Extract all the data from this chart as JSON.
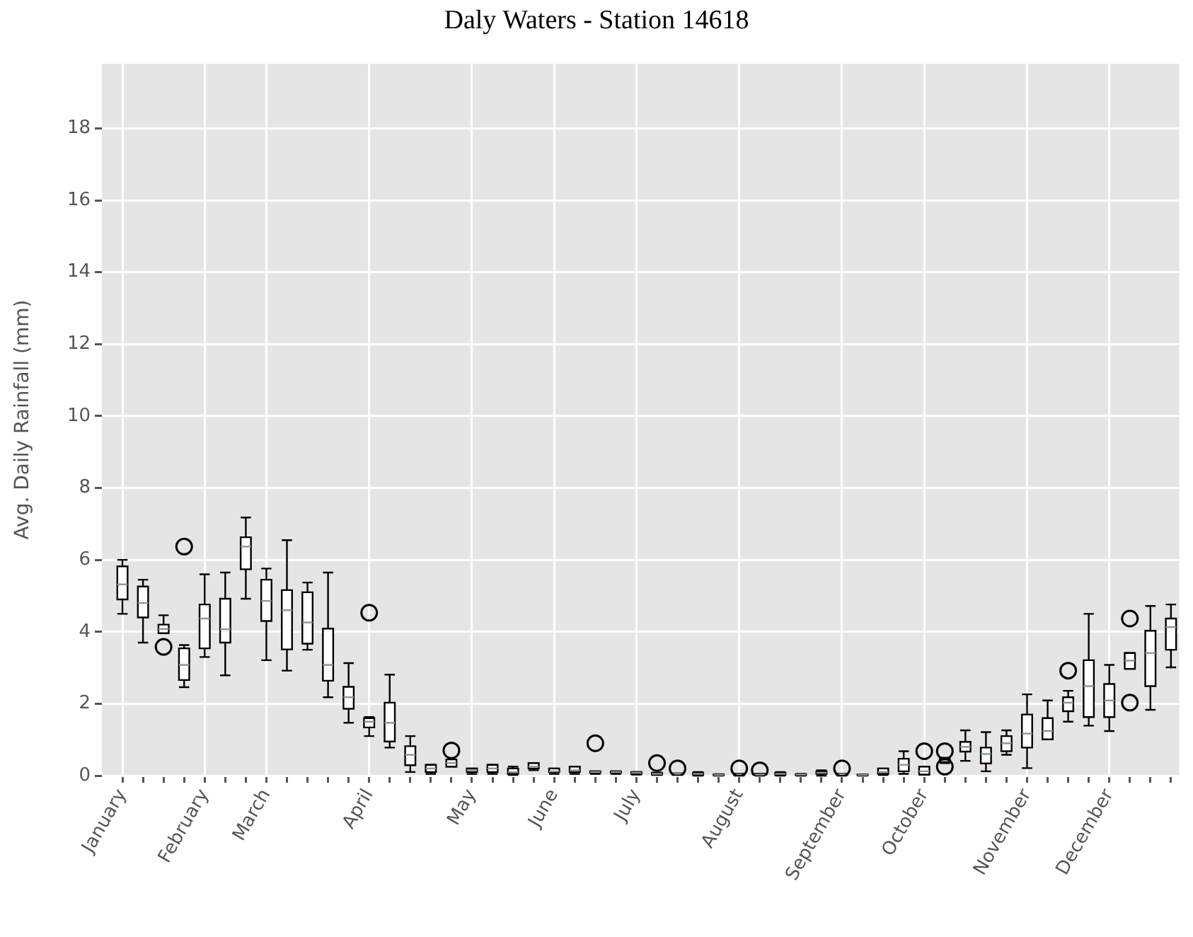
{
  "chart_data": {
    "type": "box",
    "title": "Daly Waters - Station 14618",
    "ylabel": "Avg. Daily Rainfall (mm)",
    "color": "#ffffff",
    "categories": [
      "January",
      null,
      null,
      null,
      "February",
      null,
      null,
      "March",
      null,
      null,
      null,
      null,
      "April",
      null,
      null,
      null,
      null,
      "May",
      null,
      null,
      null,
      "June",
      null,
      null,
      null,
      "July",
      null,
      null,
      null,
      null,
      "August",
      null,
      null,
      null,
      null,
      "September",
      null,
      null,
      null,
      "October",
      null,
      null,
      null,
      null,
      "November",
      null,
      null,
      null,
      "December",
      null,
      null,
      null
    ],
    "boxes": [
      {
        "low": 4.5,
        "q1": 4.9,
        "median": 5.32,
        "q3": 5.82,
        "high": 6.0
      },
      {
        "low": 3.7,
        "q1": 4.4,
        "median": 4.8,
        "q3": 5.26,
        "high": 5.45
      },
      {
        "low": 3.96,
        "q1": 3.96,
        "median": 4.08,
        "q3": 4.2,
        "high": 4.46,
        "outliers": [
          3.58
        ]
      },
      {
        "low": 2.46,
        "q1": 2.66,
        "median": 3.08,
        "q3": 3.54,
        "high": 3.63,
        "outliers": [
          6.37
        ]
      },
      {
        "low": 3.3,
        "q1": 3.54,
        "median": 4.37,
        "q3": 4.76,
        "high": 5.6
      },
      {
        "low": 2.79,
        "q1": 3.7,
        "median": 4.07,
        "q3": 4.92,
        "high": 5.65
      },
      {
        "low": 4.92,
        "q1": 5.74,
        "median": 6.37,
        "q3": 6.63,
        "high": 7.18
      },
      {
        "low": 3.21,
        "q1": 4.3,
        "median": 4.86,
        "q3": 5.45,
        "high": 5.76
      },
      {
        "low": 2.92,
        "q1": 3.51,
        "median": 4.6,
        "q3": 5.16,
        "high": 6.55
      },
      {
        "low": 3.5,
        "q1": 3.67,
        "median": 4.26,
        "q3": 5.1,
        "high": 5.37
      },
      {
        "low": 2.18,
        "q1": 2.64,
        "median": 3.08,
        "q3": 4.09,
        "high": 5.65
      },
      {
        "low": 1.47,
        "q1": 1.86,
        "median": 2.18,
        "q3": 2.47,
        "high": 3.13
      },
      {
        "low": 1.1,
        "q1": 1.34,
        "median": 1.5,
        "q3": 1.6,
        "high": 1.63,
        "outliers": [
          4.53
        ]
      },
      {
        "low": 0.78,
        "q1": 0.95,
        "median": 1.47,
        "q3": 2.03,
        "high": 2.81
      },
      {
        "low": 0.1,
        "q1": 0.29,
        "median": 0.58,
        "q3": 0.82,
        "high": 1.1
      },
      {
        "low": 0.05,
        "q1": 0.1,
        "median": 0.2,
        "q3": 0.3,
        "high": 0.3
      },
      {
        "low": 0.25,
        "q1": 0.25,
        "median": 0.35,
        "q3": 0.45,
        "high": 0.45,
        "outliers": [
          0.7
        ]
      },
      {
        "low": 0.05,
        "q1": 0.1,
        "median": 0.15,
        "q3": 0.2,
        "high": 0.2
      },
      {
        "low": 0.05,
        "q1": 0.1,
        "median": 0.2,
        "q3": 0.3,
        "high": 0.3
      },
      {
        "low": 0.02,
        "q1": 0.05,
        "median": 0.1,
        "q3": 0.2,
        "high": 0.25
      },
      {
        "low": 0.15,
        "q1": 0.2,
        "median": 0.25,
        "q3": 0.35,
        "high": 0.35
      },
      {
        "low": 0.05,
        "q1": 0.1,
        "median": 0.12,
        "q3": 0.2,
        "high": 0.2
      },
      {
        "low": 0.05,
        "q1": 0.1,
        "median": 0.15,
        "q3": 0.25,
        "high": 0.25
      },
      {
        "low": 0.05,
        "q1": 0.08,
        "median": 0.1,
        "q3": 0.12,
        "high": 0.12,
        "outliers": [
          0.9
        ]
      },
      {
        "low": 0.05,
        "q1": 0.08,
        "median": 0.1,
        "q3": 0.12,
        "high": 0.12
      },
      {
        "low": 0.03,
        "q1": 0.05,
        "median": 0.08,
        "q3": 0.1,
        "high": 0.1
      },
      {
        "low": 0.02,
        "q1": 0.03,
        "median": 0.05,
        "q3": 0.08,
        "high": 0.08,
        "outliers": [
          0.35
        ]
      },
      {
        "low": 0.02,
        "q1": 0.03,
        "median": 0.05,
        "q3": 0.06,
        "high": 0.06,
        "outliers": [
          0.2
        ]
      },
      {
        "low": 0,
        "q1": 0.02,
        "median": 0.05,
        "q3": 0.08,
        "high": 0.1
      },
      {
        "low": 0,
        "q1": 0.01,
        "median": 0.02,
        "q3": 0.03,
        "high": 0.04
      },
      {
        "low": 0,
        "q1": 0.02,
        "median": 0.03,
        "q3": 0.05,
        "high": 0.05,
        "outliers": [
          0.2
        ]
      },
      {
        "low": 0,
        "q1": 0.02,
        "median": 0.03,
        "q3": 0.05,
        "high": 0.05,
        "outliers": [
          0.15
        ]
      },
      {
        "low": 0,
        "q1": 0.02,
        "median": 0.05,
        "q3": 0.08,
        "high": 0.1
      },
      {
        "low": 0,
        "q1": 0.01,
        "median": 0.03,
        "q3": 0.04,
        "high": 0.05
      },
      {
        "low": 0,
        "q1": 0.05,
        "median": 0.08,
        "q3": 0.12,
        "high": 0.15
      },
      {
        "low": 0,
        "q1": 0.02,
        "median": 0.04,
        "q3": 0.05,
        "high": 0.05,
        "outliers": [
          0.2
        ]
      },
      {
        "low": 0,
        "q1": 0.01,
        "median": 0.02,
        "q3": 0.03,
        "high": 0.03
      },
      {
        "low": 0.02,
        "q1": 0.05,
        "median": 0.1,
        "q3": 0.2,
        "high": 0.2
      },
      {
        "low": 0.05,
        "q1": 0.12,
        "median": 0.3,
        "q3": 0.47,
        "high": 0.68
      },
      {
        "low": 0.03,
        "q1": 0.03,
        "median": 0.12,
        "q3": 0.25,
        "high": 0.25,
        "outliers": [
          0.68
        ]
      },
      {
        "low": 0.35,
        "q1": 0.38,
        "median": 0.42,
        "q3": 0.46,
        "high": 0.5,
        "outliers": [
          0.68,
          0.25
        ]
      },
      {
        "low": 0.41,
        "q1": 0.67,
        "median": 0.8,
        "q3": 0.94,
        "high": 1.26
      },
      {
        "low": 0.12,
        "q1": 0.34,
        "median": 0.6,
        "q3": 0.78,
        "high": 1.21
      },
      {
        "low": 0.58,
        "q1": 0.68,
        "median": 0.9,
        "q3": 1.1,
        "high": 1.26
      },
      {
        "low": 0.21,
        "q1": 0.78,
        "median": 1.17,
        "q3": 1.7,
        "high": 2.26
      },
      {
        "low": 1.01,
        "q1": 1.01,
        "median": 1.24,
        "q3": 1.6,
        "high": 2.09
      },
      {
        "low": 1.5,
        "q1": 1.79,
        "median": 2.03,
        "q3": 2.18,
        "high": 2.36,
        "outliers": [
          2.92
        ]
      },
      {
        "low": 1.39,
        "q1": 1.63,
        "median": 2.49,
        "q3": 3.21,
        "high": 4.5
      },
      {
        "low": 1.24,
        "q1": 1.63,
        "median": 2.09,
        "q3": 2.55,
        "high": 3.08
      },
      {
        "low": 2.97,
        "q1": 2.97,
        "median": 3.2,
        "q3": 3.41,
        "high": 3.41,
        "outliers": [
          4.37,
          2.03
        ]
      },
      {
        "low": 1.83,
        "q1": 2.49,
        "median": 3.41,
        "q3": 4.03,
        "high": 4.72
      },
      {
        "low": 3.01,
        "q1": 3.5,
        "median": 4.13,
        "q3": 4.37,
        "high": 4.76
      }
    ],
    "ylim": [
      0,
      19.8
    ],
    "yticks": [
      0,
      2,
      4,
      6,
      8,
      10,
      12,
      14,
      16,
      18
    ],
    "grid": true
  }
}
